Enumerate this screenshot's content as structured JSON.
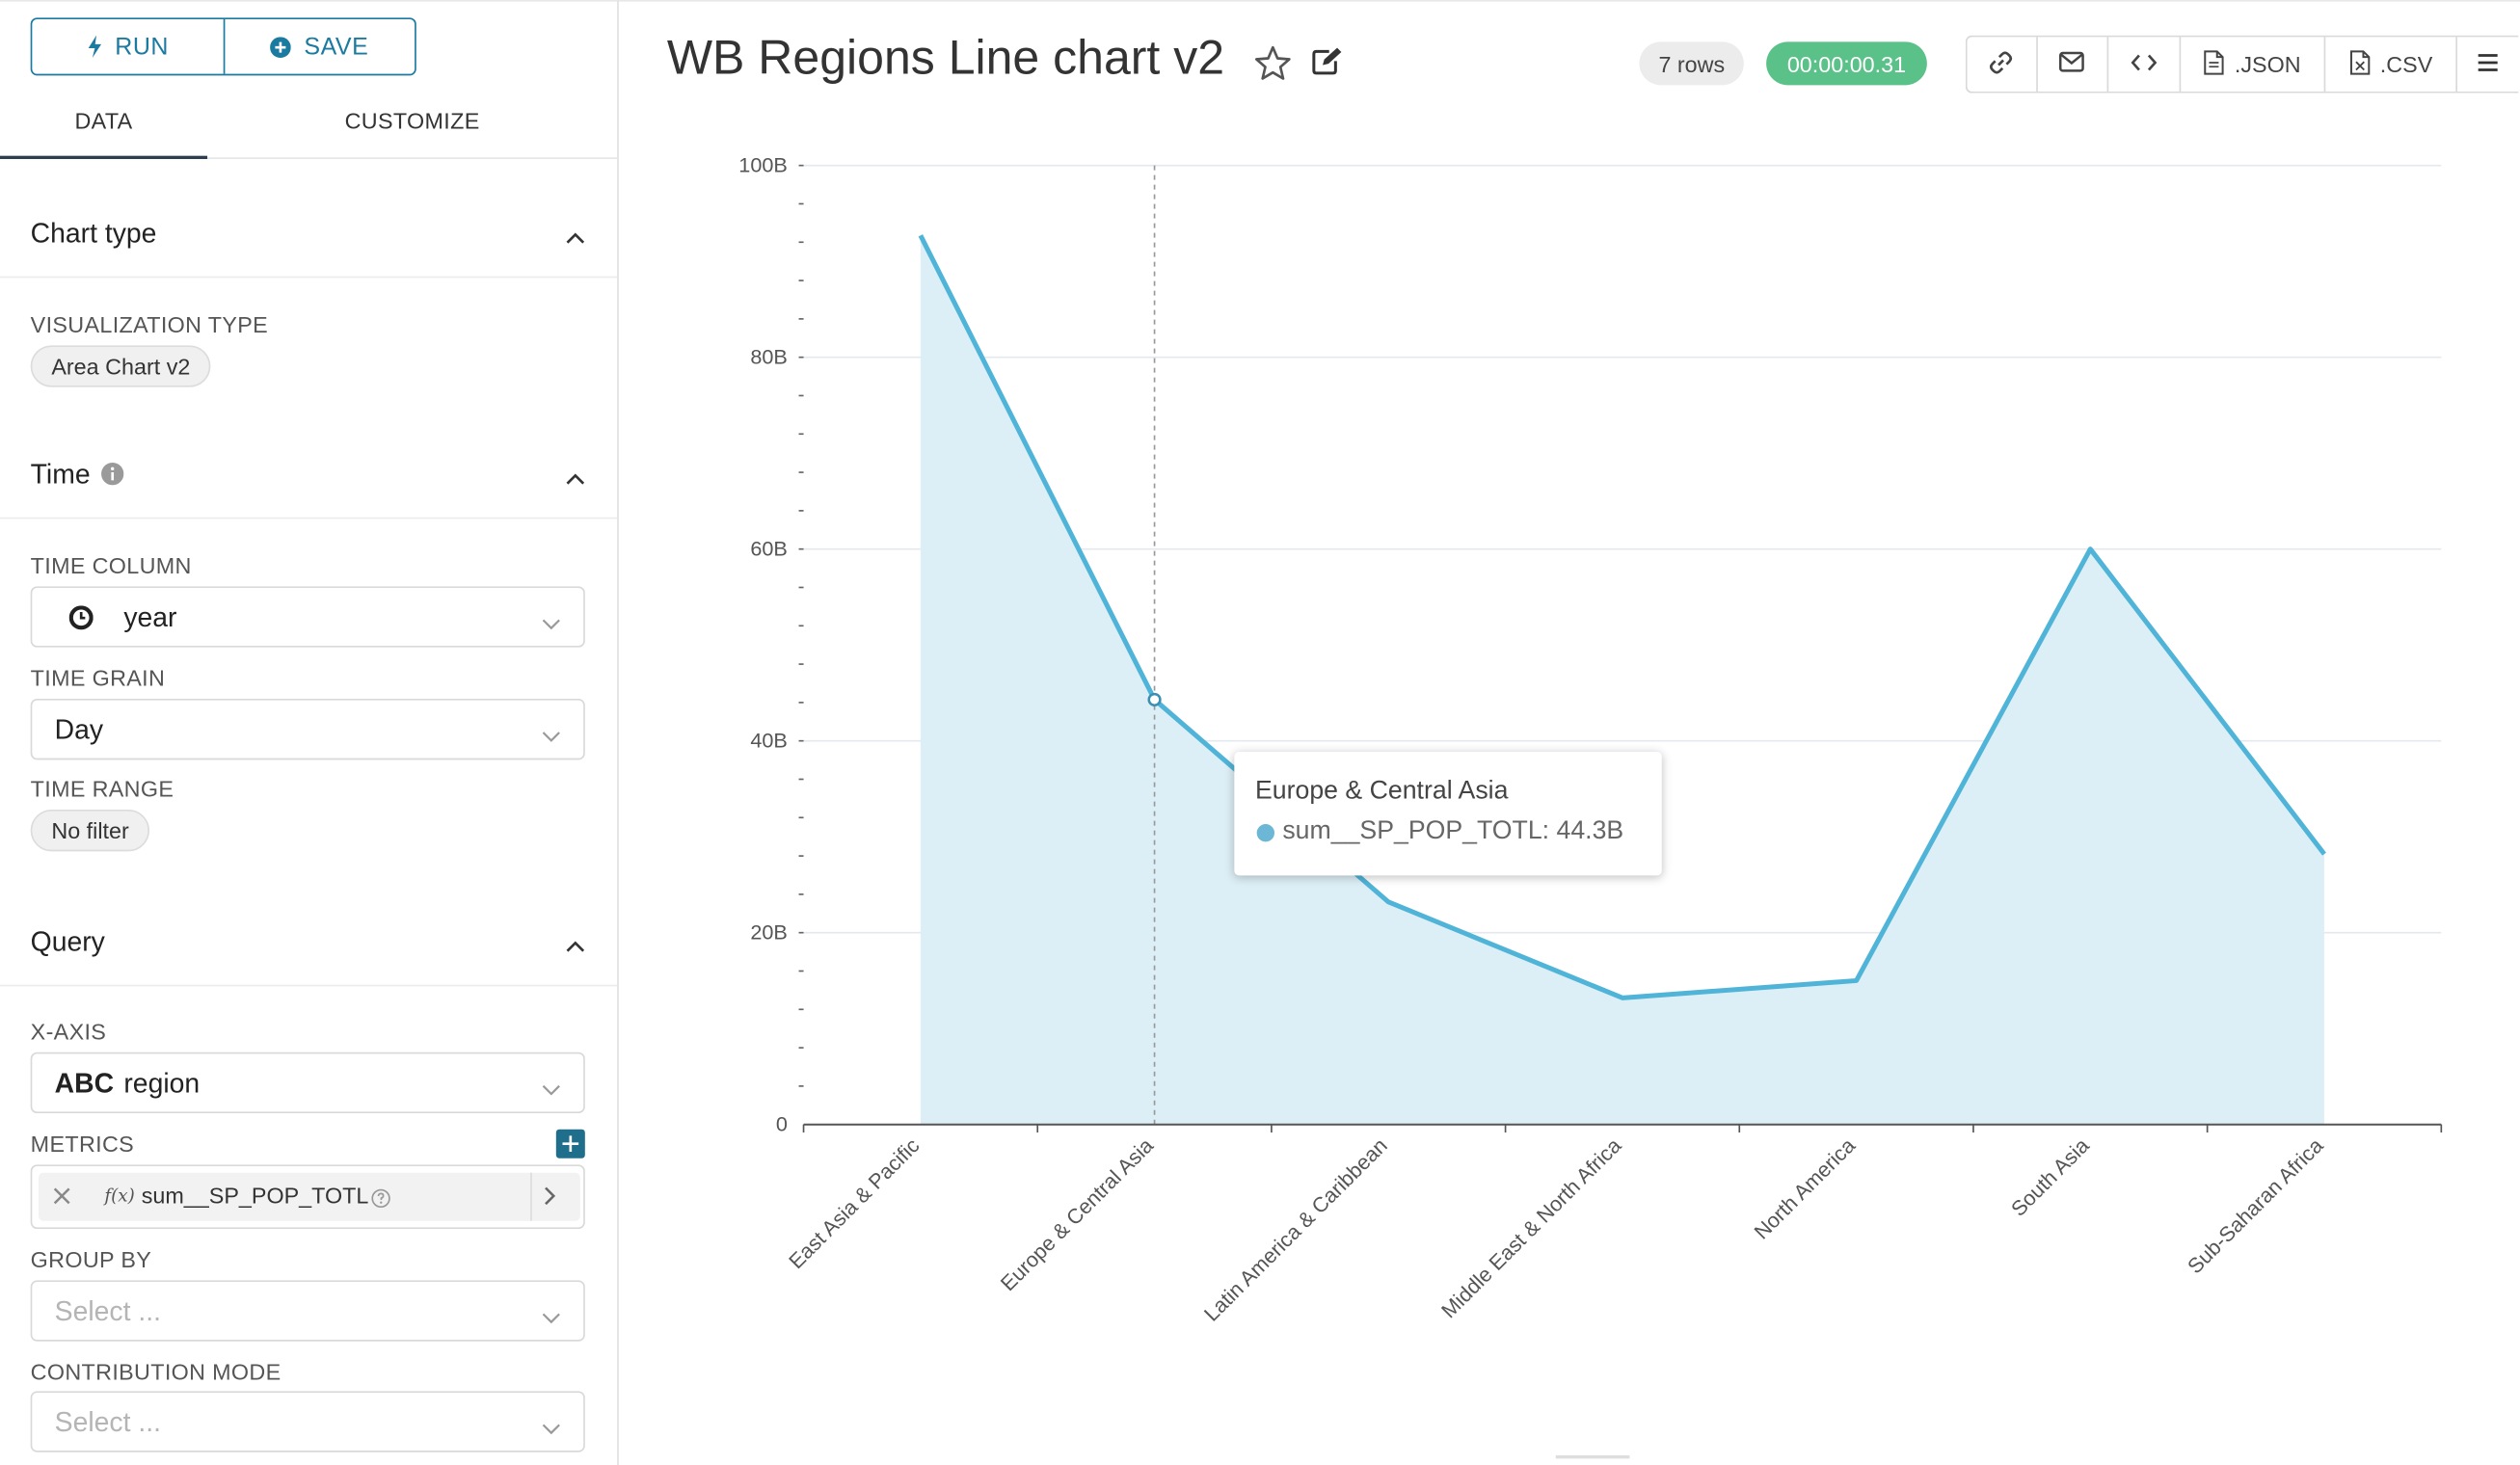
{
  "toolbar_left": {
    "run_label": "RUN",
    "save_label": "SAVE"
  },
  "panel_tabs": {
    "data": "DATA",
    "customize": "CUSTOMIZE",
    "active": "DATA"
  },
  "sections": {
    "chart_type": {
      "title": "Chart type",
      "visualization_type_label": "VISUALIZATION TYPE",
      "visualization_type_value": "Area Chart v2"
    },
    "time": {
      "title": "Time",
      "time_column_label": "TIME COLUMN",
      "time_column_value": "year",
      "time_grain_label": "TIME GRAIN",
      "time_grain_value": "Day",
      "time_range_label": "TIME RANGE",
      "time_range_value": "No filter"
    },
    "query": {
      "title": "Query",
      "x_axis_label": "X-AXIS",
      "x_axis_type": "ABC",
      "x_axis_value": "region",
      "metrics_label": "METRICS",
      "metric_fx": "f(x)",
      "metric_name": "sum__SP_POP_TOTL",
      "group_by_label": "GROUP BY",
      "group_by_placeholder": "Select ...",
      "contribution_mode_label": "CONTRIBUTION MODE",
      "contribution_mode_placeholder": "Select ..."
    }
  },
  "header": {
    "title": "WB Regions Line chart v2",
    "rows_badge": "7 rows",
    "timer_badge": "00:00:00.31",
    "json_label": ".JSON",
    "csv_label": ".CSV"
  },
  "colors": {
    "accent": "#1b7aa0",
    "series_line": "#4fb4d8",
    "series_fill": "#ddeff6",
    "timer_badge": "#5ac189",
    "grid": "#e3e9ee"
  },
  "icons": [
    "bolt-icon",
    "plus-circle-icon",
    "chevron-up-icon",
    "info-icon",
    "clock-icon",
    "chevron-down-icon",
    "plus-icon",
    "close-icon",
    "help-icon",
    "chevron-right-icon",
    "star-icon",
    "edit-icon",
    "link-icon",
    "mail-icon",
    "code-icon",
    "file-json-icon",
    "file-csv-icon",
    "menu-icon"
  ],
  "chart_data": {
    "type": "area",
    "categories": [
      "East Asia & Pacific",
      "Europe & Central Asia",
      "Latin America & Caribbean",
      "Middle East & North Africa",
      "North America",
      "South Asia",
      "Sub-Saharan Africa"
    ],
    "series": [
      {
        "name": "sum__SP_POP_TOTL",
        "values": [
          92.7,
          44.3,
          23.2,
          13.2,
          15.0,
          60.0,
          28.2
        ]
      }
    ],
    "y_unit": "B",
    "ylim": [
      0,
      100
    ],
    "yticks": [
      "0",
      "20B",
      "40B",
      "60B",
      "80B",
      "100B"
    ],
    "ytick_values": [
      0,
      20,
      40,
      60,
      80,
      100
    ],
    "grid": true,
    "tooltip": {
      "category": "Europe & Central Asia",
      "text": "sum__SP_POP_TOTL: 44.3B"
    }
  }
}
